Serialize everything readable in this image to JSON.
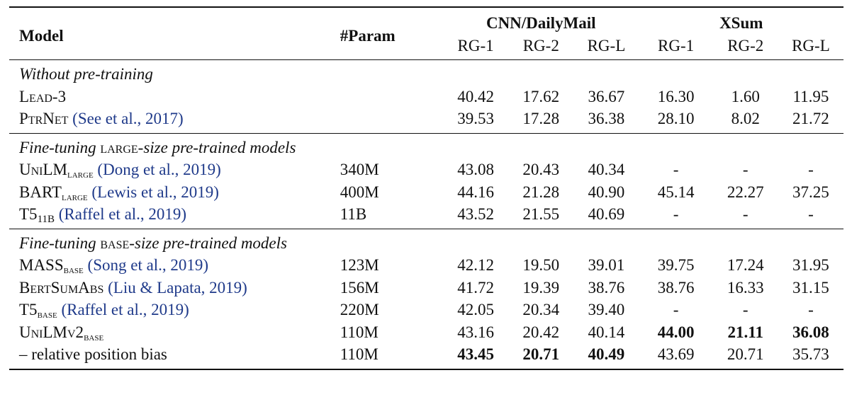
{
  "header": {
    "model": "Model",
    "param": "#Param",
    "group_cnn": "CNN/DailyMail",
    "group_xsum": "XSum",
    "metrics": [
      "RG-1",
      "RG-2",
      "RG-L",
      "RG-1",
      "RG-2",
      "RG-L"
    ]
  },
  "sections": [
    {
      "title_parts": [
        "Without pre-training",
        "",
        ""
      ],
      "rows": [
        {
          "name": "Lead-3",
          "sub": "",
          "name2": "",
          "cite": "",
          "param": "",
          "values": [
            "40.42",
            "17.62",
            "36.67",
            "16.30",
            "1.60",
            "11.95"
          ]
        },
        {
          "name": "PtrNet",
          "sub": "",
          "name2": "",
          "cite": "(See et al., 2017)",
          "param": "",
          "values": [
            "39.53",
            "17.28",
            "36.38",
            "28.10",
            "8.02",
            "21.72"
          ]
        }
      ]
    },
    {
      "title_parts": [
        "Fine-tuning ",
        "large",
        "-size pre-trained models"
      ],
      "rows": [
        {
          "name": "UniLM",
          "sub": "large",
          "name2": "",
          "cite": "(Dong et al., 2019)",
          "param": "340M",
          "values": [
            "43.08",
            "20.43",
            "40.34",
            "-",
            "-",
            "-"
          ]
        },
        {
          "name": "BART",
          "sub": "large",
          "name2": "",
          "cite": "(Lewis et al., 2019)",
          "param": "400M",
          "values": [
            "44.16",
            "21.28",
            "40.90",
            "45.14",
            "22.27",
            "37.25"
          ]
        },
        {
          "name": "T5",
          "sub": "11B",
          "name2": "",
          "cite": "(Raffel et al., 2019)",
          "param": "11B",
          "values": [
            "43.52",
            "21.55",
            "40.69",
            "-",
            "-",
            "-"
          ]
        }
      ]
    },
    {
      "title_parts": [
        "Fine-tuning ",
        "base",
        "-size pre-trained models"
      ],
      "rows": [
        {
          "name": "MASS",
          "sub": "base",
          "name2": "",
          "cite": "(Song et al., 2019)",
          "param": "123M",
          "values": [
            "42.12",
            "19.50",
            "39.01",
            "39.75",
            "17.24",
            "31.95"
          ]
        },
        {
          "name": "BertSumAbs",
          "sub": "",
          "name2": "",
          "cite": "(Liu & Lapata, 2019)",
          "param": "156M",
          "values": [
            "41.72",
            "19.39",
            "38.76",
            "38.76",
            "16.33",
            "31.15"
          ]
        },
        {
          "name": "T5",
          "sub": "base",
          "name2": "",
          "cite": "(Raffel et al., 2019)",
          "param": "220M",
          "values": [
            "42.05",
            "20.34",
            "39.40",
            "-",
            "-",
            "-"
          ]
        },
        {
          "name": "UniLMv2",
          "sub": "base",
          "name2": "",
          "cite": "",
          "param": "110M",
          "values": [
            "43.16",
            "20.42",
            "40.14",
            "44.00",
            "21.11",
            "36.08"
          ]
        },
        {
          "name": "– relative position bias",
          "sub": "",
          "name2": "",
          "cite": "",
          "param": "110M",
          "values": [
            "43.45",
            "20.71",
            "40.49",
            "43.69",
            "20.71",
            "35.73"
          ]
        }
      ]
    }
  ]
}
